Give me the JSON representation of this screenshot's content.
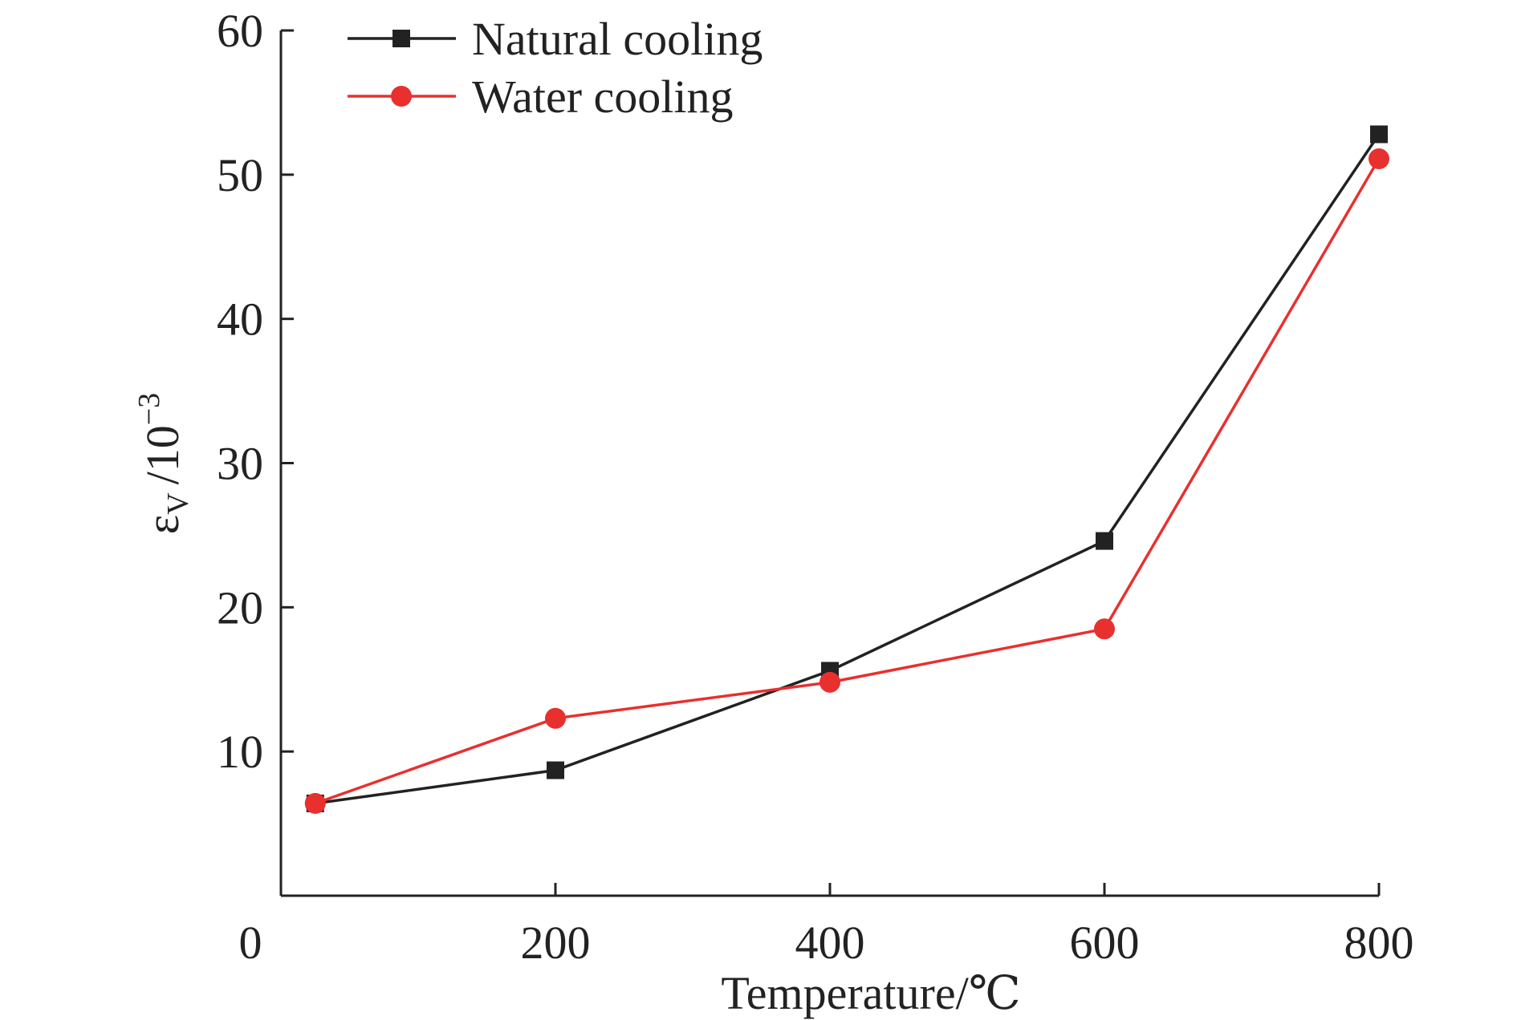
{
  "chart_data": {
    "type": "line",
    "title": "",
    "xlabel": "Temperature/℃",
    "ylabel_symbol": "ε",
    "ylabel_subscript": "V",
    "ylabel_unit": "/10",
    "ylabel_exponent": "−3",
    "xlim": [
      0,
      800
    ],
    "ylim": [
      0,
      60
    ],
    "x_origin_label": "0",
    "xticks": [
      200,
      400,
      600,
      800
    ],
    "xtick_labels": [
      "200",
      "400",
      "600",
      "800"
    ],
    "yticks": [
      10,
      20,
      30,
      40,
      50,
      60
    ],
    "ytick_labels": [
      "10",
      "20",
      "30",
      "40",
      "50",
      "60"
    ],
    "grid": false,
    "legend_position": "top-left",
    "x": [
      25,
      200,
      400,
      600,
      800
    ],
    "series": [
      {
        "name": "Natural cooling",
        "marker": "square",
        "color": "#222222",
        "values": [
          6.4,
          8.7,
          15.6,
          24.6,
          52.8
        ]
      },
      {
        "name": "Water cooling",
        "marker": "circle",
        "color": "#e8302f",
        "values": [
          6.4,
          12.3,
          14.8,
          18.5,
          51.1
        ]
      }
    ]
  }
}
